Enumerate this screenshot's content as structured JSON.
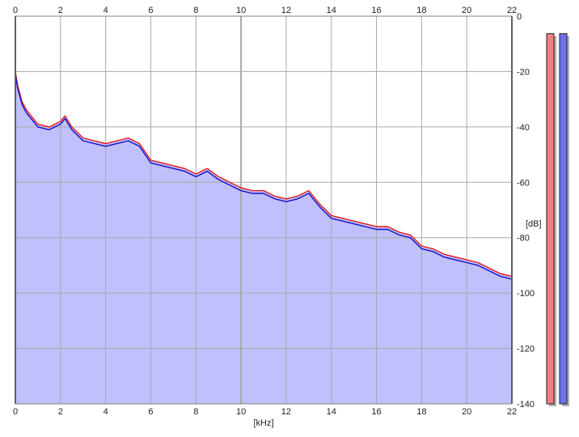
{
  "chart_data": {
    "type": "area",
    "xlabel": "[kHz]",
    "ylabel": "[dB]",
    "xlim": [
      0,
      22
    ],
    "ylim": [
      -140,
      0
    ],
    "x_ticks": [
      0,
      2,
      4,
      6,
      8,
      10,
      12,
      14,
      16,
      18,
      20,
      22
    ],
    "y_ticks": [
      0,
      -20,
      -40,
      -60,
      -80,
      -100,
      -120,
      -140
    ],
    "grid": true,
    "series": [
      {
        "color": "#e81818",
        "x": [
          0,
          0.1,
          0.3,
          0.5,
          0.8,
          1.0,
          1.5,
          2.0,
          2.2,
          2.5,
          3.0,
          3.5,
          4.0,
          4.5,
          5.0,
          5.5,
          6.0,
          6.5,
          7.0,
          7.5,
          8.0,
          8.5,
          9.0,
          9.5,
          10.0,
          10.5,
          11.0,
          11.5,
          12.0,
          12.5,
          13.0,
          13.5,
          14.0,
          14.5,
          15.0,
          15.5,
          16.0,
          16.5,
          17.0,
          17.5,
          18.0,
          18.5,
          19.0,
          19.5,
          20.0,
          20.5,
          21.0,
          21.5,
          22.0
        ],
        "values": [
          -20,
          -25,
          -31,
          -34,
          -37,
          -39,
          -40,
          -38,
          -36,
          -40,
          -44,
          -45,
          -46,
          -45,
          -44,
          -46,
          -52,
          -53,
          -54,
          -55,
          -57,
          -55,
          -58,
          -60,
          -62,
          -63,
          -63,
          -65,
          -66,
          -65,
          -63,
          -68,
          -72,
          -73,
          -74,
          -75,
          -76,
          -76,
          -78,
          -79,
          -83,
          -84,
          -86,
          -87,
          -88,
          -89,
          -91,
          -93,
          -94
        ]
      },
      {
        "color": "#1010c8",
        "x": [
          0,
          0.1,
          0.3,
          0.5,
          0.8,
          1.0,
          1.5,
          2.0,
          2.2,
          2.5,
          3.0,
          3.5,
          4.0,
          4.5,
          5.0,
          5.5,
          6.0,
          6.5,
          7.0,
          7.5,
          8.0,
          8.5,
          9.0,
          9.5,
          10.0,
          10.5,
          11.0,
          11.5,
          12.0,
          12.5,
          13.0,
          13.5,
          14.0,
          14.5,
          15.0,
          15.5,
          16.0,
          16.5,
          17.0,
          17.5,
          18.0,
          18.5,
          19.0,
          19.5,
          20.0,
          20.5,
          21.0,
          21.5,
          22.0
        ],
        "values": [
          -21,
          -26,
          -32,
          -35,
          -38,
          -40,
          -41,
          -39,
          -37,
          -41,
          -45,
          -46,
          -47,
          -46,
          -45,
          -47,
          -53,
          -54,
          -55,
          -56,
          -58,
          -56,
          -59,
          -61,
          -63,
          -64,
          -64,
          -66,
          -67,
          -66,
          -64,
          -69,
          -73,
          -74,
          -75,
          -76,
          -77,
          -77,
          -79,
          -80,
          -84,
          -85,
          -87,
          -88,
          -89,
          -90,
          -92,
          -94,
          -95
        ]
      }
    ],
    "level_meters": [
      {
        "color": "#f08080",
        "level": 0.99
      },
      {
        "color": "#7070e8",
        "level": 0.99
      }
    ],
    "colors": {
      "fill": "#c0c0fc",
      "grid": "#a8a8a8",
      "meter_shadow": "#b0b0b0"
    }
  }
}
